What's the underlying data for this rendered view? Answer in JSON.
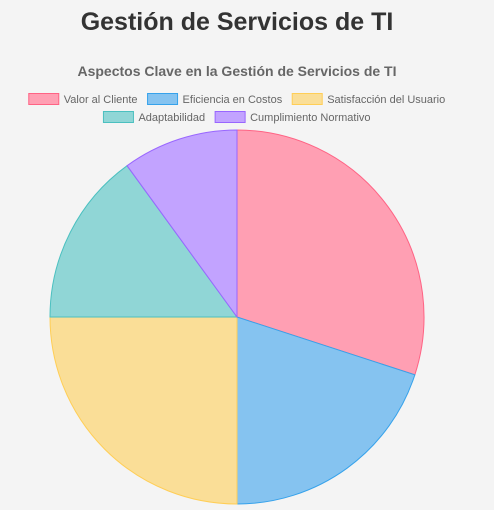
{
  "page": {
    "title": "Gestión de Servicios de TI"
  },
  "chart_data": {
    "type": "pie",
    "title": "Aspectos Clave en la Gestión de Servicios de TI",
    "legend_position": "top",
    "categories": [
      "Valor al Cliente",
      "Eficiencia en Costos",
      "Satisfacción del Usuario",
      "Adaptabilidad",
      "Cumplimiento Normativo"
    ],
    "values": [
      30,
      20,
      25,
      15,
      10
    ],
    "colors": [
      "#ff9fb3",
      "#85c3f0",
      "#fade97",
      "#90d6d6",
      "#c2a3ff"
    ],
    "border_colors": [
      "#ff6384",
      "#36a2eb",
      "#ffce56",
      "#4bc0c0",
      "#9966ff"
    ]
  }
}
